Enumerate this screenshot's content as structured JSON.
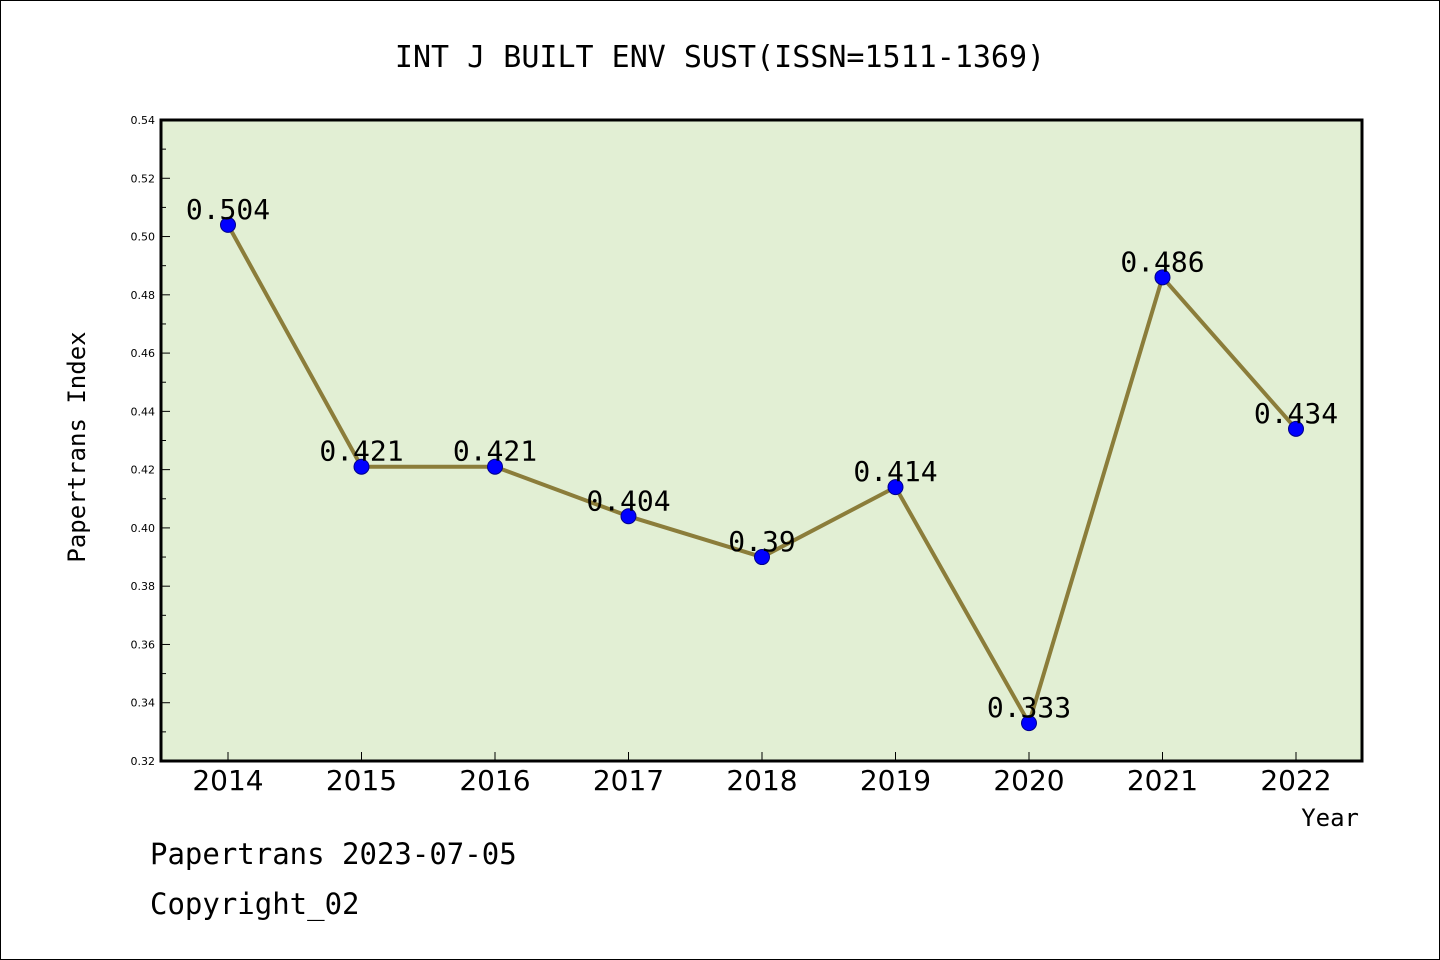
{
  "chart_data": {
    "type": "line",
    "title": "INT J BUILT ENV SUST(ISSN=1511-1369)",
    "xlabel": "Year",
    "ylabel": "Papertrans Index",
    "categories": [
      "2014",
      "2015",
      "2016",
      "2017",
      "2018",
      "2019",
      "2020",
      "2021",
      "2022"
    ],
    "series": [
      {
        "values": [
          0.504,
          0.421,
          0.421,
          0.404,
          0.39,
          0.414,
          0.333,
          0.486,
          0.434
        ],
        "labels": [
          "0.504",
          "0.421",
          "0.421",
          "0.404",
          "0.39",
          "0.414",
          "0.333",
          "0.486",
          "0.434"
        ]
      }
    ],
    "ylim": [
      0.32,
      0.54
    ],
    "yticks": [
      "0.32",
      "0.34",
      "0.36",
      "0.38",
      "0.40",
      "0.42",
      "0.44",
      "0.46",
      "0.48",
      "0.50",
      "0.52",
      "0.54"
    ],
    "grid": false,
    "colors": {
      "plot_background": "#e2efd4",
      "line": "#8b7d3a",
      "marker": "#0000ff"
    }
  },
  "footer": {
    "line1": "Papertrans 2023-07-05",
    "line2": "Copyright_02"
  }
}
